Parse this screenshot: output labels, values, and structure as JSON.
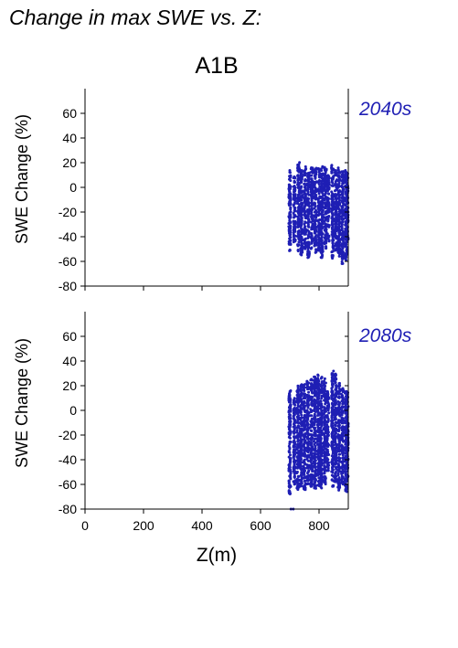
{
  "page": {
    "title": "Change in max SWE vs. Z:"
  },
  "colors": {
    "points": "#1f1fb4",
    "axis": "#000000",
    "period_label": "#1f1fb4"
  },
  "chart_data": {
    "type": "scatter",
    "scenario": "A1B",
    "xlabel": "Z(m)",
    "ylabel": "SWE Change (%)",
    "xlim": [
      0,
      900
    ],
    "ylim": [
      -80,
      80
    ],
    "xticks": [
      0,
      200,
      400,
      600,
      800
    ],
    "yticks": [
      -80,
      -60,
      -40,
      -20,
      0,
      20,
      40,
      60
    ],
    "grid": false,
    "panels": [
      {
        "label": "2040s",
        "elevation_columns": [
          {
            "z": 700,
            "min": -52,
            "max": 14
          },
          {
            "z": 716,
            "min": -45,
            "max": 9
          },
          {
            "z": 730,
            "min": -52,
            "max": 21
          },
          {
            "z": 740,
            "min": -55,
            "max": 15
          },
          {
            "z": 752,
            "min": -50,
            "max": 17
          },
          {
            "z": 764,
            "min": -58,
            "max": 14
          },
          {
            "z": 776,
            "min": -50,
            "max": 16
          },
          {
            "z": 788,
            "min": -55,
            "max": 17
          },
          {
            "z": 800,
            "min": -52,
            "max": 16
          },
          {
            "z": 810,
            "min": -57,
            "max": 18
          },
          {
            "z": 822,
            "min": -50,
            "max": 17
          },
          {
            "z": 832,
            "min": -45,
            "max": 10
          },
          {
            "z": 846,
            "min": -58,
            "max": 18
          },
          {
            "z": 858,
            "min": -52,
            "max": 15
          },
          {
            "z": 868,
            "min": -56,
            "max": 16
          },
          {
            "z": 880,
            "min": -62,
            "max": 13
          },
          {
            "z": 892,
            "min": -60,
            "max": 14
          },
          {
            "z": 898,
            "min": -45,
            "max": 12
          }
        ]
      },
      {
        "label": "2080s",
        "elevation_columns": [
          {
            "z": 700,
            "min": -68,
            "max": 16
          },
          {
            "z": 716,
            "min": -60,
            "max": 10
          },
          {
            "z": 728,
            "min": -65,
            "max": 20
          },
          {
            "z": 738,
            "min": -62,
            "max": 22
          },
          {
            "z": 750,
            "min": -65,
            "max": 22
          },
          {
            "z": 762,
            "min": -60,
            "max": 24
          },
          {
            "z": 774,
            "min": -62,
            "max": 26
          },
          {
            "z": 786,
            "min": -64,
            "max": 28
          },
          {
            "z": 798,
            "min": -62,
            "max": 30
          },
          {
            "z": 808,
            "min": -63,
            "max": 28
          },
          {
            "z": 820,
            "min": -60,
            "max": 26
          },
          {
            "z": 830,
            "min": -50,
            "max": 16
          },
          {
            "z": 846,
            "min": -62,
            "max": 32
          },
          {
            "z": 856,
            "min": -58,
            "max": 30
          },
          {
            "z": 868,
            "min": -65,
            "max": 22
          },
          {
            "z": 880,
            "min": -60,
            "max": 18
          },
          {
            "z": 892,
            "min": -66,
            "max": 16
          },
          {
            "z": 898,
            "min": -55,
            "max": 15
          }
        ],
        "outliers": [
          {
            "z": 704,
            "y": -80
          },
          {
            "z": 712,
            "y": -80
          }
        ]
      }
    ]
  }
}
